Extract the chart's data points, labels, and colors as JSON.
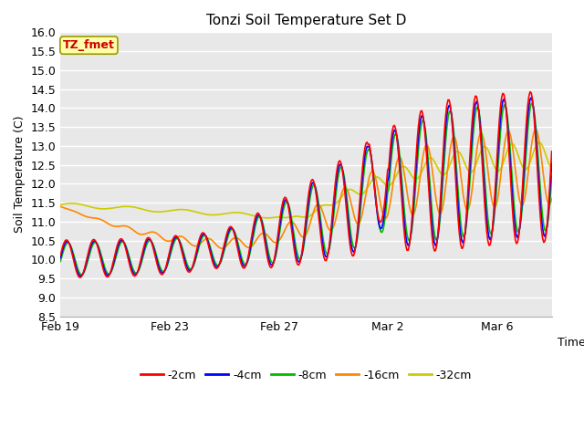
{
  "title": "Tonzi Soil Temperature Set D",
  "xlabel": "Time",
  "ylabel": "Soil Temperature (C)",
  "ylim": [
    8.5,
    16.0
  ],
  "yticks": [
    8.5,
    9.0,
    9.5,
    10.0,
    10.5,
    11.0,
    11.5,
    12.0,
    12.5,
    13.0,
    13.5,
    14.0,
    14.5,
    15.0,
    15.5,
    16.0
  ],
  "colors": {
    "-2cm": "#ff0000",
    "-4cm": "#0000ff",
    "-8cm": "#00bb00",
    "-16cm": "#ff8800",
    "-32cm": "#cccc00"
  },
  "legend_labels": [
    "-2cm",
    "-4cm",
    "-8cm",
    "-16cm",
    "-32cm"
  ],
  "annotation_text": "TZ_fmet",
  "annotation_bg": "#ffffaa",
  "annotation_border": "#999900",
  "annotation_text_color": "#cc0000",
  "x_tick_labels": [
    "Feb 19",
    "Feb 23",
    "Feb 27",
    "Mar 2",
    "Mar 6"
  ],
  "x_tick_positions": [
    0,
    4,
    8,
    12,
    16
  ],
  "n_days": 18
}
